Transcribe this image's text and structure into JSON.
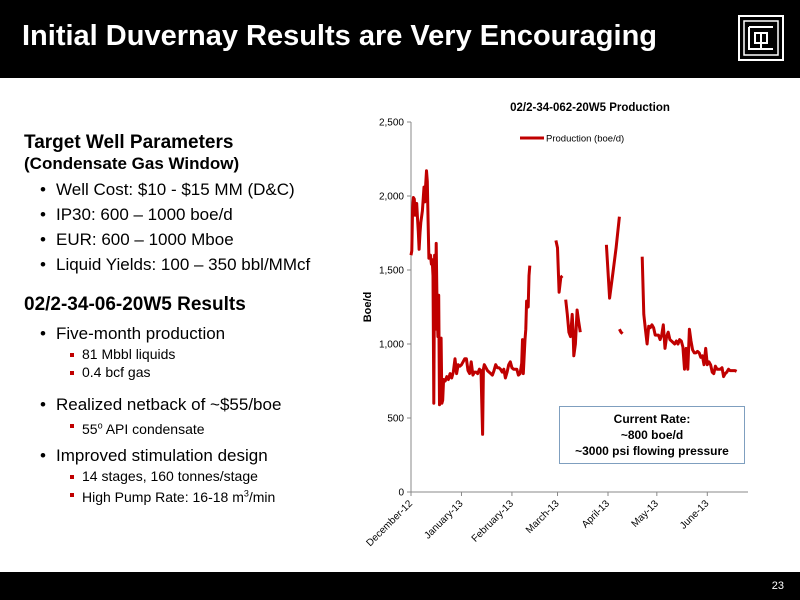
{
  "slide": {
    "title": "Initial Duvernay Results are Very Encouraging",
    "page_number": "23"
  },
  "left": {
    "section1_title": "Target Well Parameters",
    "section1_sub": "(Condensate Gas Window)",
    "section1_bullets": [
      "Well Cost: $10 - $15 MM (D&C)",
      "IP30: 600 – 1000 boe/d",
      "EUR: 600 – 1000 Mboe",
      "Liquid Yields: 100 – 350 bbl/MMcf"
    ],
    "section2_title": "02/2-34-06-20W5 Results",
    "b1": "Five-month production",
    "b1_subs": [
      "81 Mbbl liquids",
      "0.4 bcf gas"
    ],
    "b2": "Realized netback of ~$55/boe",
    "b2_sub_num": "55",
    "b2_sub_sup": "o",
    "b2_sub_rest": " API condensate",
    "b3": "Improved stimulation design",
    "b3_sub1": "14 stages, 160 tonnes/stage",
    "b3_sub2_pre": " High Pump Rate: 16-18 m",
    "b3_sub2_sup": "3",
    "b3_sub2_post": "/min"
  },
  "callout": {
    "line1": "Current Rate:",
    "line2": "~800 boe/d",
    "line3": "~3000 psi flowing pressure"
  },
  "colors": {
    "series": "#c00000",
    "header": "#000000"
  },
  "chart_data": {
    "type": "line",
    "title": "02/2-34-062-20W5 Production",
    "ylabel": "Boe/d",
    "xlabel": "",
    "ylim": [
      0,
      2500
    ],
    "yticks": [
      0,
      500,
      1000,
      1500,
      2000,
      2500
    ],
    "ytick_labels": [
      "0",
      "500",
      "1,000",
      "1,500",
      "2,000",
      "2,500"
    ],
    "xlim": [
      0,
      207
    ],
    "xticks": [
      {
        "label": "December-12",
        "x": 0
      },
      {
        "label": "January-13",
        "x": 31
      },
      {
        "label": "February-13",
        "x": 62
      },
      {
        "label": "March-13",
        "x": 90
      },
      {
        "label": "April-13",
        "x": 121
      },
      {
        "label": "May-13",
        "x": 151
      },
      {
        "label": "June-13",
        "x": 182
      }
    ],
    "legend": "top",
    "grid": false,
    "series": [
      {
        "name": "Production  (boe/d)",
        "segments": [
          [
            [
              0,
              1600
            ],
            [
              0.5,
              1630
            ],
            [
              1,
              1920
            ],
            [
              1.5,
              1990
            ],
            [
              2,
              1980
            ],
            [
              2.5,
              1870
            ],
            [
              3,
              1940
            ],
            [
              3.5,
              1950
            ],
            [
              4,
              1850
            ],
            [
              4.5,
              1760
            ],
            [
              5,
              1640
            ],
            [
              5.5,
              1750
            ],
            [
              6,
              1820
            ],
            [
              7,
              1900
            ],
            [
              8,
              2060
            ],
            [
              8.5,
              1960
            ],
            [
              9,
              2080
            ],
            [
              9.5,
              2170
            ],
            [
              10,
              2100
            ],
            [
              10.5,
              1830
            ],
            [
              11,
              1580
            ],
            [
              12,
              1600
            ],
            [
              12.5,
              1540
            ],
            [
              13,
              1570
            ],
            [
              13.5,
              1460
            ],
            [
              14,
              600
            ],
            [
              14.5,
              1600
            ],
            [
              15,
              1100
            ],
            [
              15.5,
              1680
            ],
            [
              16,
              1280
            ],
            [
              16.5,
              1050
            ],
            [
              17,
              1330
            ],
            [
              17.5,
              590
            ],
            [
              18,
              770
            ],
            [
              18.5,
              1040
            ],
            [
              19,
              600
            ],
            [
              19.5,
              620
            ],
            [
              20,
              760
            ],
            [
              21,
              750
            ],
            [
              22,
              780
            ],
            [
              23,
              760
            ],
            [
              24,
              800
            ],
            [
              25,
              770
            ],
            [
              26,
              810
            ],
            [
              27,
              900
            ],
            [
              28,
              800
            ],
            [
              29,
              860
            ],
            [
              30,
              850
            ],
            [
              31,
              860
            ],
            [
              32,
              880
            ],
            [
              33,
              900
            ],
            [
              34,
              900
            ],
            [
              35,
              820
            ],
            [
              36,
              800
            ],
            [
              37,
              880
            ],
            [
              38,
              790
            ],
            [
              39,
              810
            ],
            [
              40,
              810
            ],
            [
              41,
              800
            ],
            [
              42,
              830
            ],
            [
              43,
              820
            ],
            [
              43.5,
              600
            ],
            [
              44,
              390
            ],
            [
              44.5,
              830
            ],
            [
              45,
              860
            ],
            [
              46,
              840
            ],
            [
              47,
              820
            ],
            [
              48,
              810
            ],
            [
              49,
              800
            ],
            [
              50,
              790
            ],
            [
              51,
              820
            ],
            [
              52,
              860
            ],
            [
              53,
              840
            ],
            [
              54,
              840
            ],
            [
              55,
              830
            ],
            [
              56,
              810
            ],
            [
              57,
              830
            ],
            [
              58,
              770
            ],
            [
              59,
              810
            ],
            [
              60,
              860
            ],
            [
              61,
              880
            ],
            [
              62,
              840
            ],
            [
              63,
              830
            ],
            [
              64,
              830
            ],
            [
              65,
              830
            ],
            [
              66,
              790
            ],
            [
              67,
              800
            ],
            [
              68,
              870
            ],
            [
              68.5,
              1030
            ],
            [
              69,
              800
            ],
            [
              70,
              1030
            ],
            [
              70.5,
              1100
            ],
            [
              71,
              1290
            ],
            [
              72,
              1250
            ],
            [
              72.5,
              1460
            ],
            [
              73,
              1530
            ]
          ],
          [
            [
              89,
              1700
            ],
            [
              90,
              1650
            ],
            [
              91,
              1350
            ],
            [
              92,
              1450
            ],
            [
              93,
              1460
            ]
          ],
          [
            [
              95,
              1300
            ],
            [
              96,
              1200
            ],
            [
              97,
              1080
            ],
            [
              98,
              1050
            ],
            [
              99,
              1200
            ],
            [
              99.5,
              1100
            ],
            [
              100,
              920
            ],
            [
              101,
              1000
            ],
            [
              102,
              1230
            ],
            [
              103,
              1150
            ],
            [
              104,
              1080
            ]
          ],
          [
            [
              120,
              1670
            ],
            [
              122,
              1310
            ],
            [
              124,
              1480
            ],
            [
              126,
              1650
            ],
            [
              128,
              1860
            ]
          ],
          [
            [
              128,
              1100
            ],
            [
              129,
              1080
            ],
            [
              130,
              1070
            ]
          ],
          [
            [
              142,
              1590
            ],
            [
              143,
              1200
            ],
            [
              144,
              1100
            ],
            [
              145,
              1000
            ],
            [
              146,
              1120
            ],
            [
              147,
              1110
            ],
            [
              148,
              1130
            ],
            [
              149,
              1110
            ],
            [
              150,
              1060
            ],
            [
              151,
              1060
            ],
            [
              152,
              1060
            ],
            [
              153,
              1030
            ],
            [
              154,
              1060
            ],
            [
              155,
              1130
            ],
            [
              156,
              970
            ],
            [
              157,
              1050
            ],
            [
              158,
              1080
            ],
            [
              159,
              1030
            ],
            [
              160,
              1020
            ],
            [
              161,
              1010
            ],
            [
              162,
              1000
            ],
            [
              163,
              1020
            ],
            [
              164,
              1000
            ],
            [
              165,
              1030
            ],
            [
              166,
              1020
            ],
            [
              167,
              980
            ],
            [
              168,
              830
            ],
            [
              169,
              970
            ],
            [
              170,
              830
            ],
            [
              171,
              1100
            ],
            [
              172,
              1020
            ],
            [
              173,
              960
            ],
            [
              174,
              940
            ],
            [
              175,
              940
            ],
            [
              176,
              950
            ],
            [
              177,
              940
            ],
            [
              178,
              910
            ],
            [
              179,
              920
            ],
            [
              180,
              860
            ],
            [
              181,
              970
            ],
            [
              182,
              860
            ],
            [
              183,
              880
            ],
            [
              184,
              860
            ],
            [
              185,
              810
            ],
            [
              186,
              800
            ],
            [
              187,
              850
            ],
            [
              188,
              830
            ],
            [
              189,
              830
            ],
            [
              190,
              830
            ],
            [
              191,
              840
            ],
            [
              192,
              780
            ],
            [
              193,
              800
            ],
            [
              194,
              810
            ],
            [
              195,
              830
            ],
            [
              196,
              820
            ],
            [
              197,
              820
            ],
            [
              198,
              820
            ],
            [
              199,
              820
            ],
            [
              200,
              815
            ]
          ]
        ]
      }
    ]
  }
}
